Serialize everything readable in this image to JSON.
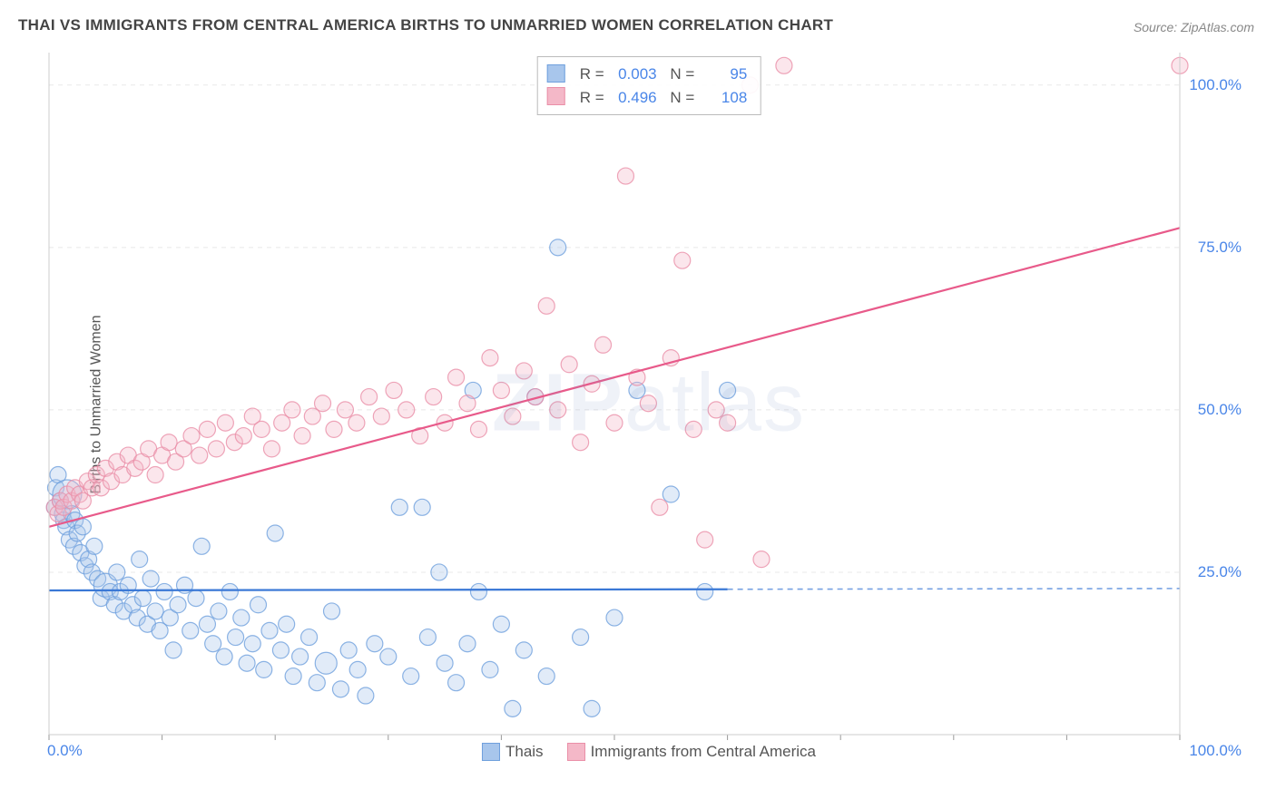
{
  "title": "THAI VS IMMIGRANTS FROM CENTRAL AMERICA BIRTHS TO UNMARRIED WOMEN CORRELATION CHART",
  "source": "Source: ZipAtlas.com",
  "ylabel": "Births to Unmarried Women",
  "watermark_a": "ZIP",
  "watermark_b": "atlas",
  "chart": {
    "type": "scatter",
    "background_color": "#ffffff",
    "grid_color": "#e8e8e8",
    "axis_color": "#cccccc",
    "xlim": [
      0,
      100
    ],
    "ylim": [
      0,
      105
    ],
    "xticks": [
      0,
      10,
      20,
      30,
      40,
      50,
      60,
      70,
      80,
      90,
      100
    ],
    "yticks": [
      25,
      50,
      75,
      100
    ],
    "ytick_labels": [
      "25.0%",
      "50.0%",
      "75.0%",
      "100.0%"
    ],
    "xtick_label_left": "0.0%",
    "xtick_label_right": "100.0%",
    "marker_radius": 9,
    "marker_opacity": 0.35,
    "line_width": 2.2
  },
  "series": [
    {
      "name": "Thais",
      "color_fill": "#a8c6ec",
      "color_stroke": "#6fa0dd",
      "trend_color": "#3a78d6",
      "trend": {
        "y_at_x0": 22.2,
        "y_at_x100": 22.5,
        "x_solid_end": 60,
        "dashed_to_end": true
      },
      "R": "0.003",
      "N": "95",
      "points": [
        [
          0.5,
          35
        ],
        [
          0.6,
          38
        ],
        [
          0.8,
          40
        ],
        [
          1.0,
          36
        ],
        [
          1.2,
          34
        ],
        [
          1.3,
          33
        ],
        [
          1.5,
          32
        ],
        [
          1.6,
          37,
          16
        ],
        [
          1.8,
          30
        ],
        [
          2.0,
          34
        ],
        [
          2.2,
          29
        ],
        [
          2.3,
          33
        ],
        [
          2.5,
          31
        ],
        [
          2.8,
          28
        ],
        [
          3.0,
          32
        ],
        [
          3.2,
          26
        ],
        [
          3.5,
          27
        ],
        [
          3.8,
          25
        ],
        [
          4.0,
          29
        ],
        [
          4.3,
          24
        ],
        [
          4.6,
          21
        ],
        [
          5.0,
          23,
          13
        ],
        [
          5.4,
          22
        ],
        [
          5.8,
          20
        ],
        [
          6.0,
          25
        ],
        [
          6.3,
          22
        ],
        [
          6.6,
          19
        ],
        [
          7.0,
          23
        ],
        [
          7.4,
          20
        ],
        [
          7.8,
          18
        ],
        [
          8.0,
          27
        ],
        [
          8.3,
          21
        ],
        [
          8.7,
          17
        ],
        [
          9.0,
          24
        ],
        [
          9.4,
          19
        ],
        [
          9.8,
          16
        ],
        [
          10.2,
          22
        ],
        [
          10.7,
          18
        ],
        [
          11.0,
          13
        ],
        [
          11.4,
          20
        ],
        [
          12.0,
          23
        ],
        [
          12.5,
          16
        ],
        [
          13.0,
          21
        ],
        [
          13.5,
          29
        ],
        [
          14.0,
          17
        ],
        [
          14.5,
          14
        ],
        [
          15.0,
          19
        ],
        [
          15.5,
          12
        ],
        [
          16.0,
          22
        ],
        [
          16.5,
          15
        ],
        [
          17.0,
          18
        ],
        [
          17.5,
          11
        ],
        [
          18.0,
          14
        ],
        [
          18.5,
          20
        ],
        [
          19.0,
          10
        ],
        [
          19.5,
          16
        ],
        [
          20.0,
          31
        ],
        [
          20.5,
          13
        ],
        [
          21.0,
          17
        ],
        [
          21.6,
          9
        ],
        [
          22.2,
          12
        ],
        [
          23.0,
          15
        ],
        [
          23.7,
          8
        ],
        [
          24.5,
          11,
          12
        ],
        [
          25.0,
          19
        ],
        [
          25.8,
          7
        ],
        [
          26.5,
          13
        ],
        [
          27.3,
          10
        ],
        [
          28.0,
          6
        ],
        [
          28.8,
          14
        ],
        [
          30.0,
          12
        ],
        [
          31.0,
          35
        ],
        [
          32.0,
          9
        ],
        [
          33.0,
          35
        ],
        [
          33.5,
          15
        ],
        [
          34.5,
          25
        ],
        [
          35.0,
          11
        ],
        [
          36.0,
          8
        ],
        [
          37.0,
          14
        ],
        [
          37.5,
          53
        ],
        [
          38.0,
          22
        ],
        [
          39.0,
          10
        ],
        [
          40.0,
          17
        ],
        [
          41.0,
          4
        ],
        [
          42.0,
          13
        ],
        [
          43.0,
          52
        ],
        [
          44.0,
          9
        ],
        [
          45.0,
          75
        ],
        [
          47.0,
          15
        ],
        [
          48.0,
          4
        ],
        [
          50.0,
          18
        ],
        [
          52.0,
          53
        ],
        [
          55.0,
          37
        ],
        [
          58.0,
          22
        ],
        [
          60.0,
          53
        ]
      ]
    },
    {
      "name": "Immigrants from Central America",
      "color_fill": "#f4b8c8",
      "color_stroke": "#ea8fa8",
      "trend_color": "#e85a8a",
      "trend": {
        "y_at_x0": 32,
        "y_at_x100": 78,
        "x_solid_end": 100,
        "dashed_to_end": false
      },
      "R": "0.496",
      "N": "108",
      "points": [
        [
          0.5,
          35
        ],
        [
          0.8,
          34
        ],
        [
          1.0,
          36
        ],
        [
          1.3,
          35
        ],
        [
          1.6,
          37
        ],
        [
          2.0,
          36
        ],
        [
          2.3,
          38
        ],
        [
          2.7,
          37
        ],
        [
          3.0,
          36
        ],
        [
          3.4,
          39
        ],
        [
          3.8,
          38
        ],
        [
          4.2,
          40
        ],
        [
          4.6,
          38
        ],
        [
          5.0,
          41
        ],
        [
          5.5,
          39
        ],
        [
          6.0,
          42
        ],
        [
          6.5,
          40
        ],
        [
          7.0,
          43
        ],
        [
          7.6,
          41
        ],
        [
          8.2,
          42
        ],
        [
          8.8,
          44
        ],
        [
          9.4,
          40
        ],
        [
          10.0,
          43
        ],
        [
          10.6,
          45
        ],
        [
          11.2,
          42
        ],
        [
          11.9,
          44
        ],
        [
          12.6,
          46
        ],
        [
          13.3,
          43
        ],
        [
          14.0,
          47
        ],
        [
          14.8,
          44
        ],
        [
          15.6,
          48
        ],
        [
          16.4,
          45
        ],
        [
          17.2,
          46
        ],
        [
          18.0,
          49
        ],
        [
          18.8,
          47
        ],
        [
          19.7,
          44
        ],
        [
          20.6,
          48
        ],
        [
          21.5,
          50
        ],
        [
          22.4,
          46
        ],
        [
          23.3,
          49
        ],
        [
          24.2,
          51
        ],
        [
          25.2,
          47
        ],
        [
          26.2,
          50
        ],
        [
          27.2,
          48
        ],
        [
          28.3,
          52
        ],
        [
          29.4,
          49
        ],
        [
          30.5,
          53
        ],
        [
          31.6,
          50
        ],
        [
          32.8,
          46
        ],
        [
          34.0,
          52
        ],
        [
          35.0,
          48
        ],
        [
          36.0,
          55
        ],
        [
          37.0,
          51
        ],
        [
          38.0,
          47
        ],
        [
          39.0,
          58
        ],
        [
          40.0,
          53
        ],
        [
          41.0,
          49
        ],
        [
          42.0,
          56
        ],
        [
          43.0,
          52
        ],
        [
          44.0,
          66
        ],
        [
          45.0,
          50
        ],
        [
          46.0,
          57
        ],
        [
          47.0,
          45
        ],
        [
          48.0,
          54
        ],
        [
          49.0,
          60
        ],
        [
          50.0,
          48
        ],
        [
          51.0,
          86
        ],
        [
          52.0,
          55
        ],
        [
          53.0,
          51
        ],
        [
          54.0,
          35
        ],
        [
          55.0,
          58
        ],
        [
          56.0,
          73
        ],
        [
          57.0,
          47
        ],
        [
          58.0,
          30
        ],
        [
          59.0,
          50
        ],
        [
          60.0,
          48
        ],
        [
          62.0,
          100
        ],
        [
          63.0,
          27
        ],
        [
          65.0,
          103
        ],
        [
          100.0,
          103
        ]
      ]
    }
  ]
}
